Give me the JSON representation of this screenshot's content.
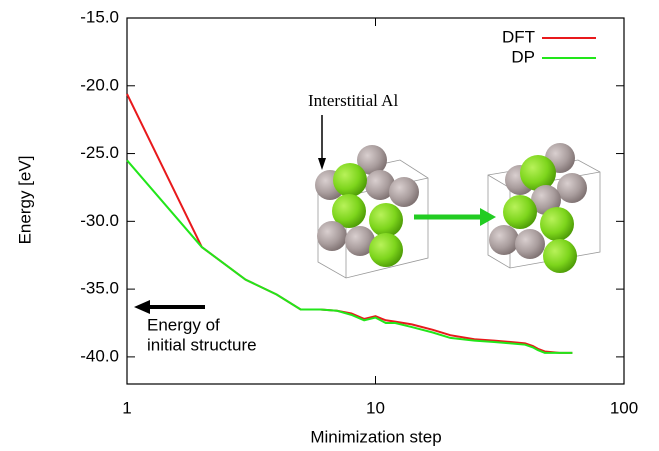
{
  "chart_data": {
    "type": "line",
    "x_label": "Minimization step",
    "y_label": "Energy [eV]",
    "x": [
      1,
      2,
      3,
      4,
      5,
      6,
      7,
      8,
      9,
      10,
      11,
      12,
      14,
      17,
      20,
      25,
      30,
      35,
      40,
      43,
      45,
      48,
      55,
      62
    ],
    "series": [
      {
        "name": "DFT",
        "color": "#e8191c",
        "values": [
          -20.6,
          -31.9,
          -34.3,
          -35.4,
          -36.5,
          -36.5,
          -36.6,
          -36.8,
          -37.2,
          -37.0,
          -37.3,
          -37.4,
          -37.6,
          -38.0,
          -38.4,
          -38.7,
          -38.8,
          -38.9,
          -39.0,
          -39.2,
          -39.4,
          -39.6,
          -39.7,
          -39.7
        ]
      },
      {
        "name": "DP",
        "color": "#22e61a",
        "values": [
          -25.5,
          -31.9,
          -34.3,
          -35.4,
          -36.5,
          -36.5,
          -36.6,
          -36.9,
          -37.3,
          -37.1,
          -37.5,
          -37.5,
          -37.8,
          -38.2,
          -38.6,
          -38.8,
          -38.9,
          -39.0,
          -39.1,
          -39.3,
          -39.5,
          -39.7,
          -39.7,
          -39.7
        ]
      }
    ],
    "xlim": [
      1,
      100
    ],
    "xticks": [
      1,
      10,
      100
    ],
    "x_log": true,
    "ylim": [
      -42,
      -15
    ],
    "yticks": [
      {
        "value": -40,
        "label": "-40.0"
      },
      {
        "value": -35,
        "label": "-35.0"
      },
      {
        "value": -30,
        "label": "-30.0"
      },
      {
        "value": -25,
        "label": "-25.0"
      },
      {
        "value": -20,
        "label": "-20.0"
      },
      {
        "value": -15,
        "label": "-15.0"
      }
    ],
    "legend": "top-right",
    "annotations": [
      "Interstitial Al",
      "Energy of",
      "initial structure"
    ]
  }
}
